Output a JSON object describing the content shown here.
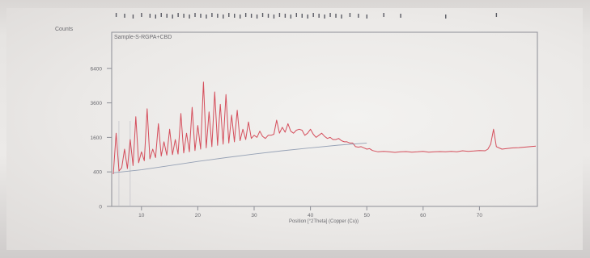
{
  "chart_data": {
    "type": "line",
    "title": "Sample-S-RGPA+CBD",
    "ylabel": "Counts",
    "xlabel": "Position [°2Theta] (Copper (Cu))",
    "x_ticks": [
      10,
      20,
      30,
      40,
      50,
      60,
      70
    ],
    "y_ticks": [
      0,
      400,
      1600,
      3600,
      6400
    ],
    "y_scale": "sqrt",
    "xlim": [
      5,
      80
    ],
    "ylim": [
      0,
      10000
    ],
    "reflection_bar_positions": [
      5.5,
      7,
      8.5,
      10,
      11.5,
      12.5,
      13.5,
      14.5,
      15.5,
      16.5,
      17.5,
      18.5,
      19.5,
      20.5,
      21.5,
      22.5,
      23.5,
      24.5,
      25.5,
      26.5,
      27.5,
      28.5,
      29.5,
      30.5,
      31.5,
      32.5,
      33.5,
      34.5,
      35.5,
      36.5,
      37.5,
      38.5,
      39.5,
      40.5,
      41.5,
      42.5,
      43.5,
      44.5,
      45.5,
      47,
      48.5,
      50,
      53,
      56,
      64,
      73
    ],
    "series": [
      {
        "color": "#d23c4b",
        "x": [
          5,
          5.5,
          6,
          6.5,
          7,
          7.5,
          8,
          8.5,
          9,
          9.5,
          10,
          10.5,
          11,
          11.5,
          12,
          12.5,
          13,
          13.5,
          14,
          14.5,
          15,
          15.5,
          16,
          16.5,
          17,
          17.5,
          18,
          18.5,
          19,
          19.5,
          20,
          20.5,
          21,
          21.5,
          22,
          22.5,
          23,
          23.5,
          24,
          24.5,
          25,
          25.5,
          26,
          26.5,
          27,
          27.5,
          28,
          28.5,
          29,
          29.5,
          30,
          30.5,
          31,
          31.5,
          32,
          32.5,
          33,
          33.5,
          34,
          34.5,
          35,
          35.5,
          36,
          36.5,
          37,
          37.5,
          38,
          38.5,
          39,
          39.5,
          40,
          40.5,
          41,
          41.5,
          42,
          42.5,
          43,
          43.5,
          44,
          44.5,
          45,
          45.5,
          46,
          46.5,
          47,
          47.5,
          48,
          48.5,
          49,
          49.5,
          50,
          50.5,
          51,
          52,
          53,
          54,
          55,
          56,
          57,
          58,
          59,
          60,
          61,
          62,
          63,
          64,
          65,
          66,
          67,
          68,
          69,
          70,
          71,
          71.5,
          72,
          72.5,
          73,
          74,
          75,
          76,
          77,
          78,
          79,
          80
        ],
        "values": [
          350,
          1800,
          420,
          500,
          1100,
          480,
          1500,
          560,
          2700,
          640,
          1000,
          700,
          3200,
          760,
          1100,
          800,
          2300,
          850,
          1400,
          880,
          2000,
          900,
          1500,
          920,
          2900,
          960,
          1800,
          1000,
          3300,
          1050,
          2200,
          1100,
          5200,
          1150,
          3000,
          1200,
          4400,
          1250,
          3500,
          1300,
          4200,
          1350,
          2800,
          1400,
          3100,
          1450,
          2000,
          1500,
          2400,
          1550,
          1700,
          1600,
          1900,
          1650,
          1550,
          1700,
          1700,
          1750,
          2500,
          1800,
          2100,
          1850,
          2300,
          1900,
          1800,
          1950,
          2000,
          1950,
          1700,
          1800,
          2000,
          1750,
          1600,
          1700,
          1800,
          1650,
          1550,
          1600,
          1500,
          1500,
          1550,
          1450,
          1400,
          1400,
          1350,
          1350,
          1200,
          1180,
          1200,
          1150,
          1100,
          1120,
          1050,
          1000,
          1020,
          1000,
          980,
          1000,
          1010,
          990,
          1000,
          1020,
          990,
          1000,
          1010,
          1000,
          1020,
          1000,
          1040,
          1020,
          1030,
          1050,
          1040,
          1100,
          1300,
          2000,
          1200,
          1100,
          1130,
          1150,
          1160,
          1180,
          1200,
          1220
        ]
      },
      {
        "color": "#7f8fa8",
        "x": [
          5,
          10,
          15,
          20,
          25,
          30,
          35,
          40,
          45,
          50
        ],
        "values": [
          380,
          450,
          560,
          680,
          800,
          920,
          1040,
          1150,
          1260,
          1350
        ]
      }
    ],
    "grid": false
  }
}
